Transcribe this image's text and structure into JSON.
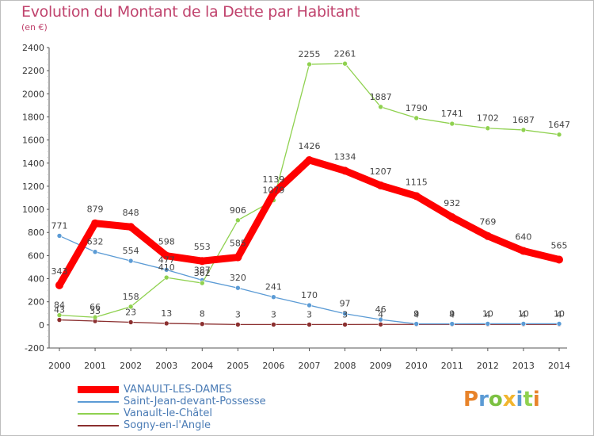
{
  "title": "Evolution du Montant de la Dette par Habitant",
  "subtitle": "(en €)",
  "chart_data": {
    "type": "line",
    "title": "Evolution du Montant de la Dette par Habitant",
    "subtitle": "(en €)",
    "categories": [
      "2000",
      "2001",
      "2002",
      "2003",
      "2004",
      "2005",
      "2006",
      "2007",
      "2008",
      "2009",
      "2010",
      "2011",
      "2012",
      "2013",
      "2014"
    ],
    "ylim": [
      -200,
      2400
    ],
    "yticks": [
      "-200",
      "0",
      "200",
      "400",
      "600",
      "800",
      "1000",
      "1200",
      "1400",
      "1600",
      "1800",
      "2000",
      "2200",
      "2400"
    ],
    "grid": false,
    "legend_position": "bottom-left",
    "series": [
      {
        "name": "VANAULT-LES-DAMES",
        "color": "#ff0000",
        "values": [
          343,
          879,
          848,
          598,
          553,
          585,
          1139,
          1426,
          1334,
          1207,
          1115,
          932,
          769,
          640,
          565
        ],
        "labels": [
          "343",
          "879",
          "848",
          "598",
          "553",
          "585",
          "1139",
          "1426",
          "1334",
          "1207",
          "1115",
          "932",
          "769",
          "640",
          "565"
        ]
      },
      {
        "name": "Saint-Jean-devant-Possesse",
        "color": "#5b9bd5",
        "values": [
          771,
          632,
          554,
          477,
          387,
          320,
          241,
          170,
          97,
          46,
          9,
          9,
          10,
          10,
          10
        ],
        "labels": [
          "771",
          "632",
          "554",
          "477",
          "387",
          "320",
          "241",
          "170",
          "97",
          "46",
          "9",
          "9",
          "10",
          "10",
          "10"
        ]
      },
      {
        "name": "Vanault-le-Châtel",
        "color": "#8fd14f",
        "values": [
          84,
          66,
          158,
          410,
          362,
          906,
          1079,
          2255,
          2261,
          1887,
          1790,
          1741,
          1702,
          1687,
          1647
        ],
        "labels": [
          "84",
          "66",
          "158",
          "410",
          "362",
          "906",
          "1079",
          "2255",
          "2261",
          "1887",
          "1790",
          "1741",
          "1702",
          "1687",
          "1647"
        ]
      },
      {
        "name": "Sogny-en-l'Angle",
        "color": "#8b2f2f",
        "values": [
          43,
          33,
          23,
          13,
          8,
          3,
          3,
          3,
          3,
          4,
          4,
          4,
          4,
          4,
          4
        ],
        "labels": [
          "43",
          "33",
          "23",
          "13",
          "8",
          "3",
          "3",
          "3",
          "3",
          "4",
          "4",
          "4",
          "4",
          "4",
          "4"
        ]
      }
    ]
  },
  "legend": {
    "items": [
      {
        "label": "VANAULT-LES-DAMES",
        "color": "#ff0000"
      },
      {
        "label": "Saint-Jean-devant-Possesse",
        "color": "#5b9bd5"
      },
      {
        "label": "Vanault-le-Châtel",
        "color": "#8fd14f"
      },
      {
        "label": "Sogny-en-l'Angle",
        "color": "#8b2f2f"
      }
    ]
  },
  "logo": {
    "text": "Proxiti",
    "letters": [
      "P",
      "r",
      "o",
      "x",
      "i",
      "t",
      "i"
    ],
    "colors": [
      "#e8832a",
      "#5b9bd5",
      "#7cc142",
      "#f2b52e",
      "#5b9bd5",
      "#8fd14f",
      "#e8832a"
    ]
  }
}
